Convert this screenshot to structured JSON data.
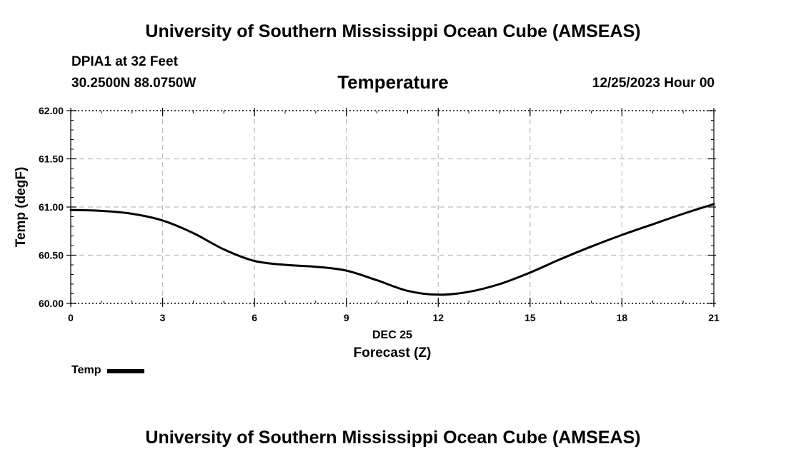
{
  "header": {
    "top_title": "University of Southern Mississippi Ocean Cube (AMSEAS)",
    "station": "DPIA1 at 32 Feet",
    "coords": "30.2500N  88.0750W",
    "variable": "Temperature",
    "datetime": "12/25/2023 Hour 00"
  },
  "footer": {
    "bottom_title": "University of Southern Mississippi Ocean Cube (AMSEAS)"
  },
  "legend": {
    "label": "Temp"
  },
  "chart_data": {
    "type": "line",
    "title": "Temperature",
    "xlabel": "Forecast (Z)",
    "xsublabel": "DEC 25",
    "ylabel": "Temp (degF)",
    "xlim": [
      0,
      21
    ],
    "ylim": [
      60.0,
      62.0
    ],
    "xticks": [
      0,
      3,
      6,
      9,
      12,
      15,
      18,
      21
    ],
    "xtick_labels": [
      "0",
      "3",
      "6",
      "9",
      "12",
      "15",
      "18",
      "21"
    ],
    "yticks": [
      60.0,
      60.5,
      61.0,
      61.5,
      62.0
    ],
    "ytick_labels": [
      "60.00",
      "60.50",
      "61.00",
      "61.50",
      "62.00"
    ],
    "grid": true,
    "series": [
      {
        "name": "Temp",
        "color": "#000000",
        "x": [
          0,
          1,
          2,
          3,
          4,
          5,
          6,
          7,
          8,
          9,
          10,
          11,
          12,
          13,
          14,
          15,
          16,
          17,
          18,
          19,
          20,
          21
        ],
        "values": [
          60.97,
          60.96,
          60.93,
          60.86,
          60.73,
          60.56,
          60.44,
          60.4,
          60.38,
          60.34,
          60.24,
          60.13,
          60.09,
          60.12,
          60.2,
          60.32,
          60.46,
          60.59,
          60.71,
          60.82,
          60.93,
          61.03
        ]
      }
    ]
  }
}
